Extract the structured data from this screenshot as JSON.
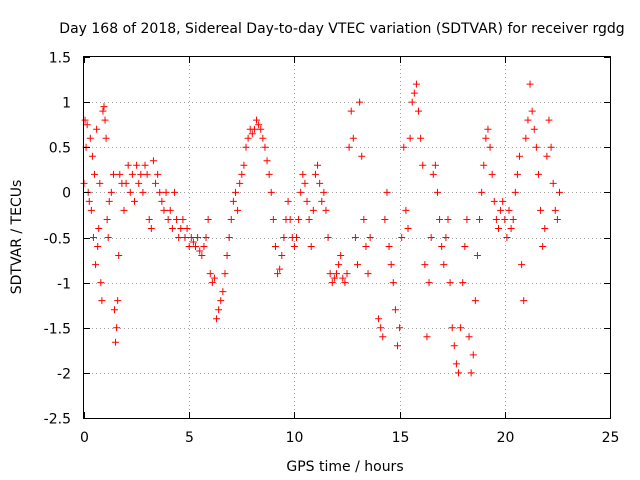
{
  "chart_data": {
    "type": "scatter",
    "title": "Day 168 of 2018, Sidereal Day-to-day VTEC variation (SDTVAR) for receiver rgdg",
    "xlabel": "GPS time / hours",
    "ylabel": "SDTVAR / TECUs",
    "xlim": [
      0,
      25
    ],
    "ylim": [
      -2.5,
      1.5
    ],
    "xticks": [
      0,
      5,
      10,
      15,
      20,
      25
    ],
    "xtick_labels": [
      "0",
      "5",
      "10",
      "15",
      "20",
      "25"
    ],
    "yticks": [
      -2.5,
      -2,
      -1.5,
      -1,
      -0.5,
      0,
      0.5,
      1,
      1.5
    ],
    "ytick_labels": [
      "-2.5",
      "-2",
      "-1.5",
      "-1",
      "-0.5",
      "0",
      "0.5",
      "1",
      "1.5"
    ],
    "grid": true,
    "marker": "plus",
    "color": "#ff0000",
    "series": [
      {
        "name": "SDTVAR",
        "points": [
          [
            0.0,
            0.1
          ],
          [
            0.05,
            0.8
          ],
          [
            0.1,
            0.5
          ],
          [
            0.15,
            0.75
          ],
          [
            0.2,
            0.0
          ],
          [
            0.25,
            -0.1
          ],
          [
            0.3,
            0.6
          ],
          [
            0.35,
            -0.2
          ],
          [
            0.4,
            0.4
          ],
          [
            0.45,
            -0.5
          ],
          [
            0.5,
            0.2
          ],
          [
            0.55,
            -0.8
          ],
          [
            0.6,
            0.7
          ],
          [
            0.65,
            -0.6
          ],
          [
            0.7,
            -0.4
          ],
          [
            0.75,
            0.1
          ],
          [
            0.8,
            -1.0
          ],
          [
            0.85,
            -1.2
          ],
          [
            0.9,
            0.9
          ],
          [
            0.95,
            0.95
          ],
          [
            1.0,
            0.8
          ],
          [
            1.05,
            0.6
          ],
          [
            1.1,
            -0.3
          ],
          [
            1.15,
            -0.5
          ],
          [
            1.2,
            -0.1
          ],
          [
            1.3,
            0.0
          ],
          [
            1.4,
            0.2
          ],
          [
            1.45,
            -1.3
          ],
          [
            1.5,
            -1.66
          ],
          [
            1.55,
            -1.5
          ],
          [
            1.6,
            -1.2
          ],
          [
            1.65,
            -0.7
          ],
          [
            1.7,
            0.2
          ],
          [
            1.8,
            0.1
          ],
          [
            1.9,
            -0.2
          ],
          [
            2.0,
            0.1
          ],
          [
            2.1,
            0.3
          ],
          [
            2.2,
            0.0
          ],
          [
            2.3,
            0.2
          ],
          [
            2.4,
            -0.1
          ],
          [
            2.5,
            0.3
          ],
          [
            2.6,
            0.1
          ],
          [
            2.7,
            0.2
          ],
          [
            2.8,
            0.0
          ],
          [
            2.9,
            0.3
          ],
          [
            3.0,
            0.2
          ],
          [
            3.1,
            -0.3
          ],
          [
            3.2,
            -0.4
          ],
          [
            3.3,
            0.35
          ],
          [
            3.4,
            0.1
          ],
          [
            3.5,
            0.2
          ],
          [
            3.6,
            0.0
          ],
          [
            3.7,
            -0.1
          ],
          [
            3.8,
            -0.2
          ],
          [
            3.9,
            0.0
          ],
          [
            4.0,
            -0.3
          ],
          [
            4.1,
            -0.2
          ],
          [
            4.2,
            -0.4
          ],
          [
            4.3,
            0.0
          ],
          [
            4.4,
            -0.3
          ],
          [
            4.5,
            -0.5
          ],
          [
            4.6,
            -0.4
          ],
          [
            4.7,
            -0.3
          ],
          [
            4.8,
            -0.5
          ],
          [
            4.9,
            -0.4
          ],
          [
            5.0,
            -0.6
          ],
          [
            5.1,
            -0.5
          ],
          [
            5.2,
            -0.55
          ],
          [
            5.3,
            -0.6
          ],
          [
            5.4,
            -0.5
          ],
          [
            5.5,
            -0.65
          ],
          [
            5.6,
            -0.7
          ],
          [
            5.7,
            -0.6
          ],
          [
            5.8,
            -0.5
          ],
          [
            5.9,
            -0.3
          ],
          [
            6.0,
            -0.9
          ],
          [
            6.1,
            -1.0
          ],
          [
            6.2,
            -0.95
          ],
          [
            6.3,
            -1.4
          ],
          [
            6.4,
            -1.3
          ],
          [
            6.5,
            -1.2
          ],
          [
            6.6,
            -1.1
          ],
          [
            6.7,
            -0.9
          ],
          [
            6.8,
            -0.7
          ],
          [
            6.9,
            -0.5
          ],
          [
            7.0,
            -0.3
          ],
          [
            7.1,
            -0.1
          ],
          [
            7.2,
            0.0
          ],
          [
            7.3,
            -0.2
          ],
          [
            7.4,
            0.1
          ],
          [
            7.5,
            0.2
          ],
          [
            7.6,
            0.3
          ],
          [
            7.7,
            0.5
          ],
          [
            7.8,
            0.6
          ],
          [
            7.9,
            0.7
          ],
          [
            8.0,
            0.65
          ],
          [
            8.1,
            0.7
          ],
          [
            8.2,
            0.8
          ],
          [
            8.3,
            0.75
          ],
          [
            8.4,
            0.7
          ],
          [
            8.5,
            0.6
          ],
          [
            8.6,
            0.5
          ],
          [
            8.7,
            0.35
          ],
          [
            8.8,
            0.2
          ],
          [
            8.9,
            0.0
          ],
          [
            9.0,
            -0.3
          ],
          [
            9.1,
            -0.6
          ],
          [
            9.2,
            -0.9
          ],
          [
            9.3,
            -0.85
          ],
          [
            9.4,
            -0.7
          ],
          [
            9.5,
            -0.5
          ],
          [
            9.6,
            -0.3
          ],
          [
            9.7,
            -0.1
          ],
          [
            9.8,
            -0.3
          ],
          [
            9.9,
            -0.5
          ],
          [
            10.0,
            -0.6
          ],
          [
            10.1,
            -0.5
          ],
          [
            10.2,
            -0.3
          ],
          [
            10.3,
            0.0
          ],
          [
            10.4,
            0.2
          ],
          [
            10.5,
            0.1
          ],
          [
            10.6,
            -0.1
          ],
          [
            10.7,
            -0.3
          ],
          [
            10.8,
            -0.6
          ],
          [
            10.9,
            -0.2
          ],
          [
            11.0,
            0.2
          ],
          [
            11.1,
            0.3
          ],
          [
            11.2,
            0.1
          ],
          [
            11.3,
            -0.1
          ],
          [
            11.4,
            0.0
          ],
          [
            11.5,
            -0.2
          ],
          [
            11.6,
            -0.5
          ],
          [
            11.7,
            -0.9
          ],
          [
            11.8,
            -1.0
          ],
          [
            11.9,
            -0.95
          ],
          [
            12.0,
            -0.9
          ],
          [
            12.1,
            -0.8
          ],
          [
            12.2,
            -0.7
          ],
          [
            12.3,
            -0.95
          ],
          [
            12.4,
            -1.0
          ],
          [
            12.5,
            -0.9
          ],
          [
            12.6,
            0.5
          ],
          [
            12.7,
            0.9
          ],
          [
            12.8,
            0.6
          ],
          [
            12.9,
            -0.5
          ],
          [
            13.0,
            -0.8
          ],
          [
            13.1,
            1.0
          ],
          [
            13.2,
            0.4
          ],
          [
            13.3,
            -0.3
          ],
          [
            13.4,
            -0.6
          ],
          [
            13.5,
            -0.9
          ],
          [
            13.6,
            -0.5
          ],
          [
            14.0,
            -1.4
          ],
          [
            14.1,
            -1.5
          ],
          [
            14.2,
            -1.6
          ],
          [
            14.3,
            -0.3
          ],
          [
            14.4,
            0.0
          ],
          [
            14.5,
            -0.6
          ],
          [
            14.6,
            -0.8
          ],
          [
            14.7,
            -1.0
          ],
          [
            14.8,
            -1.3
          ],
          [
            14.9,
            -1.7
          ],
          [
            15.0,
            -1.5
          ],
          [
            15.1,
            -0.5
          ],
          [
            15.2,
            0.5
          ],
          [
            15.3,
            -0.2
          ],
          [
            15.4,
            -0.4
          ],
          [
            15.5,
            0.6
          ],
          [
            15.6,
            1.0
          ],
          [
            15.7,
            1.1
          ],
          [
            15.8,
            1.2
          ],
          [
            15.9,
            0.9
          ],
          [
            16.0,
            0.6
          ],
          [
            16.1,
            0.3
          ],
          [
            16.2,
            -0.8
          ],
          [
            16.3,
            -1.6
          ],
          [
            16.4,
            -1.0
          ],
          [
            16.5,
            -0.5
          ],
          [
            16.6,
            0.2
          ],
          [
            16.7,
            0.3
          ],
          [
            16.8,
            0.0
          ],
          [
            16.9,
            -0.3
          ],
          [
            17.0,
            -0.6
          ],
          [
            17.1,
            -0.8
          ],
          [
            17.2,
            -0.5
          ],
          [
            17.3,
            -0.3
          ],
          [
            17.4,
            -1.0
          ],
          [
            17.5,
            -1.5
          ],
          [
            17.6,
            -1.7
          ],
          [
            17.7,
            -1.9
          ],
          [
            17.8,
            -2.0
          ],
          [
            17.9,
            -1.5
          ],
          [
            18.0,
            -1.0
          ],
          [
            18.1,
            -0.6
          ],
          [
            18.2,
            -0.3
          ],
          [
            18.3,
            -1.6
          ],
          [
            18.4,
            -2.0
          ],
          [
            18.5,
            -1.8
          ],
          [
            18.6,
            -1.2
          ],
          [
            18.7,
            -0.7
          ],
          [
            18.8,
            -0.3
          ],
          [
            18.9,
            0.0
          ],
          [
            19.0,
            0.3
          ],
          [
            19.1,
            0.6
          ],
          [
            19.2,
            0.7
          ],
          [
            19.3,
            0.5
          ],
          [
            19.4,
            0.2
          ],
          [
            19.5,
            -0.1
          ],
          [
            19.6,
            -0.3
          ],
          [
            19.7,
            -0.4
          ],
          [
            19.8,
            -0.2
          ],
          [
            19.9,
            -0.1
          ],
          [
            20.0,
            -0.3
          ],
          [
            20.1,
            -0.5
          ],
          [
            20.2,
            -0.2
          ],
          [
            20.3,
            -0.4
          ],
          [
            20.4,
            -0.3
          ],
          [
            20.5,
            0.0
          ],
          [
            20.6,
            0.2
          ],
          [
            20.7,
            0.4
          ],
          [
            20.8,
            -0.8
          ],
          [
            20.9,
            -1.2
          ],
          [
            21.0,
            0.6
          ],
          [
            21.1,
            0.8
          ],
          [
            21.2,
            1.2
          ],
          [
            21.3,
            0.9
          ],
          [
            21.4,
            0.7
          ],
          [
            21.5,
            0.5
          ],
          [
            21.6,
            0.2
          ],
          [
            21.7,
            -0.2
          ],
          [
            21.8,
            -0.6
          ],
          [
            21.9,
            -0.4
          ],
          [
            22.0,
            0.4
          ],
          [
            22.1,
            0.8
          ],
          [
            22.2,
            0.5
          ],
          [
            22.3,
            0.1
          ],
          [
            22.4,
            -0.2
          ],
          [
            22.5,
            -0.3
          ],
          [
            22.6,
            0.0
          ]
        ]
      }
    ]
  }
}
